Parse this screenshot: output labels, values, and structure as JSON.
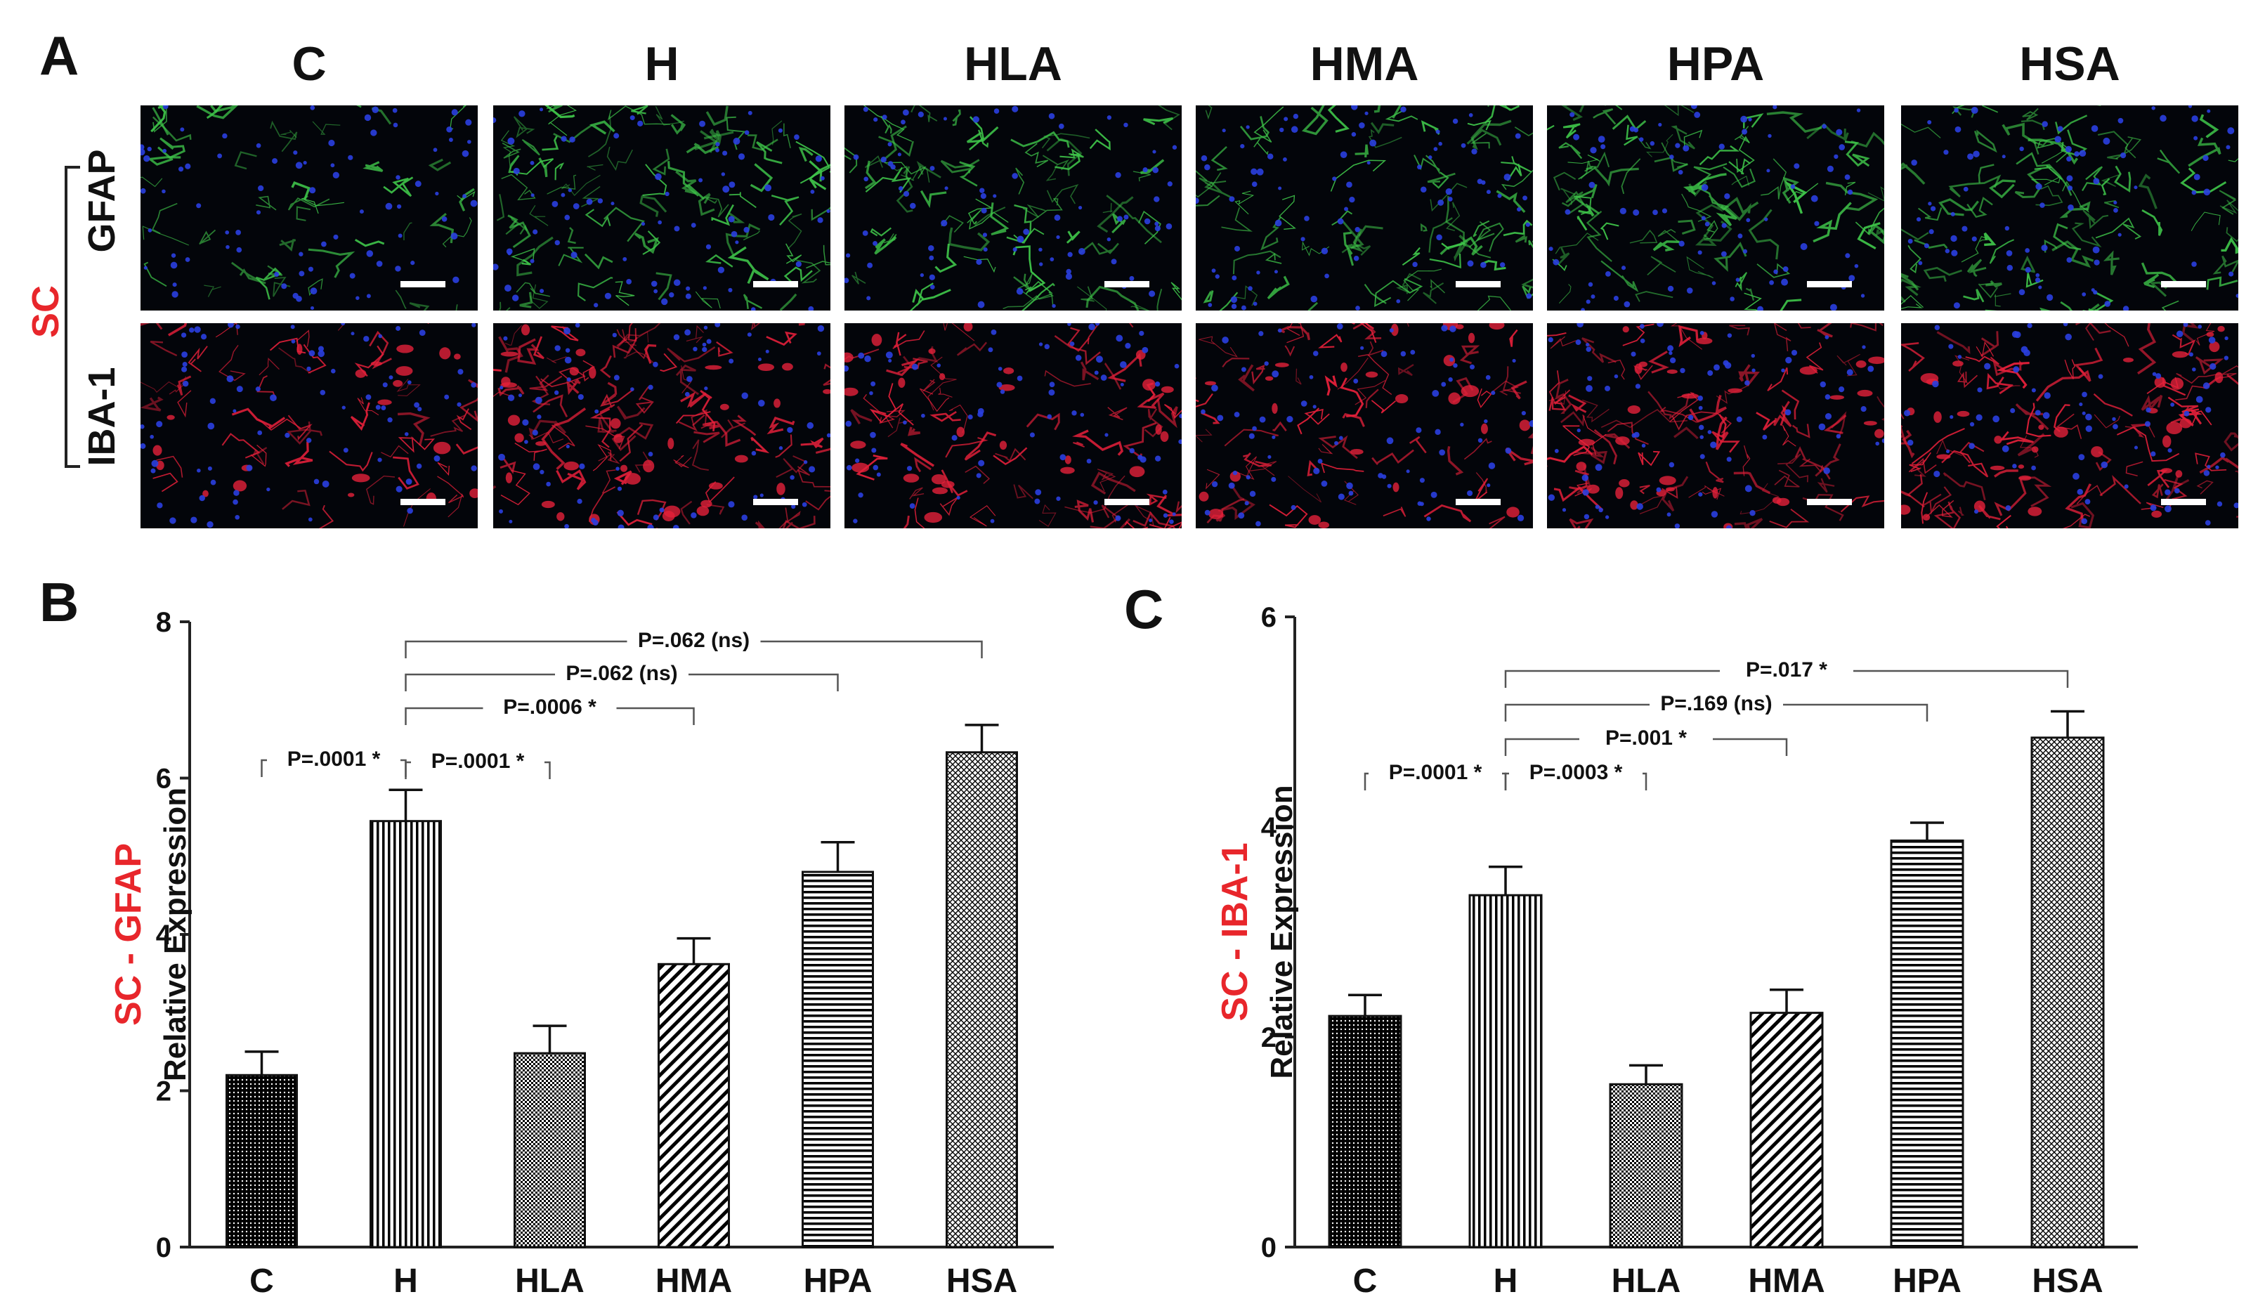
{
  "figure": {
    "panel_labels": {
      "a": "A",
      "b": "B",
      "c": "C"
    },
    "micrograph_panel": {
      "region_label": "SC",
      "row_labels": [
        "GFAP",
        "IBA-1"
      ],
      "column_titles": [
        "C",
        "H",
        "HLA",
        "HMA",
        "HPA",
        "HSA"
      ]
    },
    "colors": {
      "gfap_stain": "#3fc64a",
      "iba1_stain": "#e5203a",
      "nuclei_stain": "#2a3fe0",
      "label_red": "#e8262b"
    }
  },
  "chart_data": [
    {
      "type": "bar",
      "panel": "B",
      "ylabel_prefix": "SC - GFAP",
      "ylabel": "Relative Expression",
      "categories": [
        "C",
        "H",
        "HLA",
        "HMA",
        "HPA",
        "HSA"
      ],
      "values": [
        2.2,
        5.45,
        2.48,
        3.62,
        4.8,
        6.33
      ],
      "errors": [
        0.3,
        0.4,
        0.35,
        0.33,
        0.38,
        0.35
      ],
      "ylim": [
        0,
        8
      ],
      "yticks": [
        0,
        2,
        4,
        6,
        8
      ],
      "patterns": [
        "dots",
        "vertical",
        "checker",
        "diagonal",
        "horizontal",
        "crosshatch"
      ],
      "comparisons": [
        {
          "from": "C",
          "to": "H",
          "label": "P=.0001 *"
        },
        {
          "from": "H",
          "to": "HLA",
          "label": "P=.0001 *"
        },
        {
          "from": "H",
          "to": "HMA",
          "label": "P=.0006 *"
        },
        {
          "from": "H",
          "to": "HPA",
          "label": "P=.062 (ns)"
        },
        {
          "from": "H",
          "to": "HSA",
          "label": "P=.062 (ns)"
        }
      ]
    },
    {
      "type": "bar",
      "panel": "C",
      "ylabel_prefix": "SC - IBA-1",
      "ylabel": "Relative Expression",
      "categories": [
        "C",
        "H",
        "HLA",
        "HMA",
        "HPA",
        "HSA"
      ],
      "values": [
        2.2,
        3.35,
        1.55,
        2.23,
        3.87,
        4.85
      ],
      "errors": [
        0.2,
        0.27,
        0.18,
        0.22,
        0.17,
        0.25
      ],
      "ylim": [
        0,
        6
      ],
      "yticks": [
        0,
        2,
        4,
        6
      ],
      "patterns": [
        "dots",
        "vertical",
        "checker",
        "diagonal",
        "horizontal",
        "crosshatch"
      ],
      "comparisons": [
        {
          "from": "C",
          "to": "H",
          "label": "P=.0001 *"
        },
        {
          "from": "H",
          "to": "HLA",
          "label": "P=.0003 *"
        },
        {
          "from": "H",
          "to": "HMA",
          "label": "P=.001 *"
        },
        {
          "from": "H",
          "to": "HPA",
          "label": "P=.169 (ns)"
        },
        {
          "from": "H",
          "to": "HSA",
          "label": "P=.017 *"
        }
      ]
    }
  ]
}
